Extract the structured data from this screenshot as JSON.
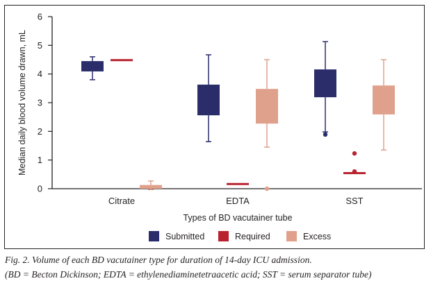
{
  "chart_data": {
    "type": "box",
    "title": "",
    "xlabel": "Types of BD vacutainer tube",
    "ylabel": "Median daily blood volume drawn, mL",
    "ylim": [
      0,
      6
    ],
    "yticks": [
      "0",
      "1",
      "2",
      "3",
      "4",
      "5",
      "6"
    ],
    "categories": [
      "Citrate",
      "EDTA",
      "SST"
    ],
    "legend_position": "bottom",
    "series": [
      {
        "name": "Submitted",
        "color": "#2b2d6b",
        "boxes": [
          {
            "category": "Citrate",
            "whisker_low": 3.8,
            "q1": 4.09,
            "q3": 4.45,
            "whisker_high": 4.6,
            "outliers": []
          },
          {
            "category": "EDTA",
            "whisker_low": 1.64,
            "q1": 2.56,
            "q3": 3.63,
            "whisker_high": 4.67,
            "outliers": []
          },
          {
            "category": "SST",
            "whisker_low": 1.98,
            "q1": 3.19,
            "q3": 4.16,
            "whisker_high": 5.13,
            "outliers": [
              1.89
            ]
          }
        ]
      },
      {
        "name": "Required",
        "color": "#b8232f",
        "boxes": [
          {
            "category": "Citrate",
            "whisker_low": 4.45,
            "q1": 4.45,
            "q3": 4.52,
            "whisker_high": 4.52,
            "outliers": []
          },
          {
            "category": "EDTA",
            "whisker_low": 0.2,
            "q1": 0.2,
            "q3": 0.2,
            "whisker_high": 0.2,
            "outliers": []
          },
          {
            "category": "SST",
            "whisker_low": 0.58,
            "q1": 0.58,
            "q3": 0.58,
            "whisker_high": 0.58,
            "outliers": [
              0.6,
              1.23
            ]
          }
        ]
      },
      {
        "name": "Excess",
        "color": "#e0a18c",
        "boxes": [
          {
            "category": "Citrate",
            "whisker_low": -0.03,
            "q1": 0,
            "q3": 0.13,
            "whisker_high": 0.27,
            "outliers": []
          },
          {
            "category": "EDTA",
            "whisker_low": 1.45,
            "q1": 2.27,
            "q3": 3.48,
            "whisker_high": 4.5,
            "outliers": [
              0.0
            ]
          },
          {
            "category": "SST",
            "whisker_low": 1.35,
            "q1": 2.59,
            "q3": 3.6,
            "whisker_high": 4.5,
            "outliers": []
          }
        ]
      }
    ]
  },
  "caption": {
    "line1": "Fig. 2. Volume of each BD vacutainer type for duration of 14-day ICU admission.",
    "line2": "(BD = Becton Dickinson; EDTA = ethylenediaminetetraacetic acid;  SST = serum separator tube)"
  }
}
